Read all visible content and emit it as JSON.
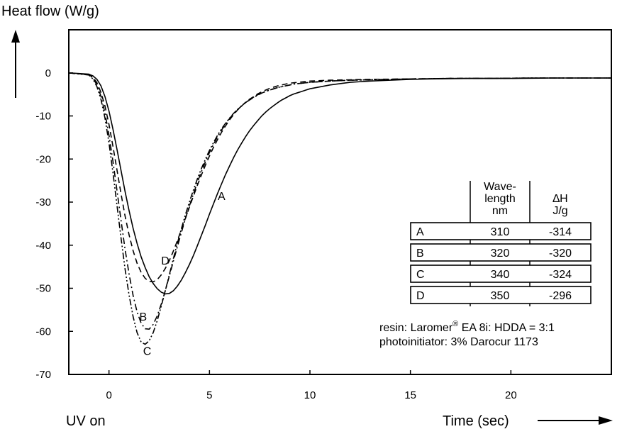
{
  "chart_data": {
    "type": "line",
    "ylabel": "Heat flow (W/g)",
    "xlabel": "Time (sec)",
    "x_annotation": "UV on",
    "xlim": [
      -2,
      25
    ],
    "ylim": [
      -70,
      10
    ],
    "xticks": [
      0,
      5,
      10,
      15,
      20
    ],
    "yticks": [
      0,
      -10,
      -20,
      -30,
      -40,
      -50,
      -60,
      -70
    ],
    "grid": false,
    "series": [
      {
        "name": "A",
        "style": "solid",
        "x": [
          -2,
          -1.0,
          -0.8,
          -0.6,
          -0.4,
          -0.2,
          0.0,
          0.2,
          0.4,
          0.6,
          0.8,
          1.0,
          1.2,
          1.4,
          1.6,
          1.8,
          2.0,
          2.2,
          2.4,
          2.6,
          2.8,
          3.0,
          3.2,
          3.4,
          3.6,
          3.8,
          4.0,
          4.2,
          4.4,
          4.6,
          4.8,
          5.0,
          5.2,
          5.4,
          5.6,
          5.8,
          6.0,
          6.2,
          6.4,
          6.6,
          6.8,
          7.0,
          7.2,
          7.4,
          7.6,
          7.8,
          8.0,
          8.2,
          8.4,
          8.6,
          8.8,
          9.0,
          9.2,
          9.4,
          9.6,
          9.8,
          10.0,
          11.0,
          12.0,
          13.0,
          14.0,
          15.0,
          16.0,
          17.0,
          18.0,
          19.0,
          20.0,
          21.0,
          22.0,
          23.0,
          24.0,
          25.0
        ],
        "y": [
          0,
          -0.3,
          -0.7,
          -1.5,
          -3.0,
          -5.5,
          -8.9,
          -13.1,
          -17.8,
          -22.7,
          -27.5,
          -32.0,
          -36.1,
          -39.6,
          -42.7,
          -45.2,
          -47.3,
          -48.9,
          -50.1,
          -50.9,
          -51.3,
          -51.2,
          -50.6,
          -49.5,
          -48.1,
          -46.4,
          -44.5,
          -42.4,
          -40.1,
          -37.7,
          -35.3,
          -32.8,
          -30.4,
          -28.0,
          -25.8,
          -23.6,
          -21.6,
          -19.7,
          -17.9,
          -16.3,
          -14.8,
          -13.4,
          -12.2,
          -11.1,
          -10.0,
          -9.1,
          -8.3,
          -7.6,
          -6.9,
          -6.3,
          -5.8,
          -5.3,
          -4.9,
          -4.6,
          -4.3,
          -4.0,
          -3.7,
          -2.8,
          -2.2,
          -1.9,
          -1.7,
          -1.5,
          -1.4,
          -1.35,
          -1.3,
          -1.3,
          -1.3,
          -1.25,
          -1.2,
          -1.2,
          -1.2,
          -1.2
        ]
      },
      {
        "name": "B",
        "style": "dash-dot",
        "x": [
          -2,
          -1.0,
          -0.8,
          -0.6,
          -0.4,
          -0.2,
          0.0,
          0.2,
          0.4,
          0.6,
          0.8,
          1.0,
          1.2,
          1.4,
          1.6,
          1.8,
          2.0,
          2.2,
          2.4,
          2.6,
          2.8,
          3.0,
          3.2,
          3.4,
          3.6,
          3.8,
          4.0,
          4.2,
          4.4,
          4.6,
          4.8,
          5.0,
          5.2,
          5.4,
          5.6,
          5.8,
          6.0,
          6.2,
          6.4,
          6.6,
          6.8,
          7.0,
          7.2,
          7.4,
          7.6,
          7.8,
          8.0,
          8.2,
          8.4,
          8.6,
          8.8,
          9.0,
          9.2,
          9.4,
          9.6,
          9.8,
          10.0,
          11.0,
          12.0,
          13.0,
          14.0,
          15.0,
          16.0,
          17.0,
          18.0,
          19.0,
          20.0,
          21.0,
          22.0,
          23.0,
          24.0,
          25.0
        ],
        "y": [
          0,
          -0.4,
          -1.2,
          -2.8,
          -5.4,
          -9.3,
          -14.5,
          -20.6,
          -27.4,
          -34.3,
          -40.9,
          -46.7,
          -51.7,
          -55.5,
          -58.1,
          -59.4,
          -59.5,
          -58.4,
          -56.4,
          -53.7,
          -50.6,
          -47.2,
          -43.8,
          -40.4,
          -37.1,
          -33.9,
          -30.9,
          -28.1,
          -25.4,
          -22.9,
          -20.6,
          -18.5,
          -16.6,
          -14.8,
          -13.3,
          -11.9,
          -10.6,
          -9.5,
          -8.5,
          -7.7,
          -6.9,
          -6.3,
          -5.7,
          -5.2,
          -4.7,
          -4.3,
          -4.0,
          -3.7,
          -3.4,
          -3.2,
          -3.0,
          -2.8,
          -2.6,
          -2.5,
          -2.4,
          -2.3,
          -2.2,
          -1.9,
          -1.7,
          -1.6,
          -1.5,
          -1.4,
          -1.35,
          -1.3,
          -1.3,
          -1.3,
          -1.25,
          -1.2,
          -1.2,
          -1.2,
          -1.2,
          -1.2
        ]
      },
      {
        "name": "C",
        "style": "dash-dot-dot",
        "x": [
          -2,
          -1.0,
          -0.8,
          -0.6,
          -0.4,
          -0.2,
          0.0,
          0.2,
          0.4,
          0.6,
          0.8,
          1.0,
          1.2,
          1.4,
          1.6,
          1.8,
          2.0,
          2.2,
          2.4,
          2.6,
          2.8,
          3.0,
          3.2,
          3.4,
          3.6,
          3.8,
          4.0,
          4.2,
          4.4,
          4.6,
          4.8,
          5.0,
          5.2,
          5.4,
          5.6,
          5.8,
          6.0,
          6.2,
          6.4,
          6.6,
          6.8,
          7.0,
          7.2,
          7.4,
          7.6,
          7.8,
          8.0,
          8.2,
          8.4,
          8.6,
          8.8,
          9.0,
          9.2,
          9.4,
          9.6,
          9.8,
          10.0,
          11.0,
          12.0,
          13.0,
          14.0,
          15.0,
          16.0,
          17.0,
          18.0,
          19.0,
          20.0,
          21.0,
          22.0,
          23.0,
          24.0,
          25.0
        ],
        "y": [
          0,
          -0.5,
          -1.4,
          -3.2,
          -6.1,
          -10.5,
          -16.3,
          -23.2,
          -30.8,
          -38.4,
          -45.5,
          -51.6,
          -56.6,
          -60.3,
          -62.5,
          -63.0,
          -62.2,
          -60.3,
          -57.5,
          -54.2,
          -50.6,
          -46.9,
          -43.2,
          -39.6,
          -36.2,
          -33.0,
          -30.0,
          -27.2,
          -24.6,
          -22.2,
          -20.0,
          -18.0,
          -16.2,
          -14.5,
          -13.0,
          -11.7,
          -10.5,
          -9.4,
          -8.5,
          -7.6,
          -6.9,
          -6.2,
          -5.6,
          -5.1,
          -4.7,
          -4.3,
          -4.0,
          -3.7,
          -3.4,
          -3.2,
          -3.0,
          -2.8,
          -2.6,
          -2.5,
          -2.4,
          -2.3,
          -2.2,
          -1.9,
          -1.7,
          -1.6,
          -1.5,
          -1.4,
          -1.35,
          -1.3,
          -1.3,
          -1.3,
          -1.25,
          -1.2,
          -1.2,
          -1.2,
          -1.2,
          -1.2
        ]
      },
      {
        "name": "D",
        "style": "dashed",
        "x": [
          -2,
          -1.0,
          -0.8,
          -0.6,
          -0.4,
          -0.2,
          0.0,
          0.2,
          0.4,
          0.6,
          0.8,
          1.0,
          1.2,
          1.4,
          1.6,
          1.8,
          2.0,
          2.2,
          2.4,
          2.6,
          2.8,
          3.0,
          3.2,
          3.4,
          3.6,
          3.8,
          4.0,
          4.2,
          4.4,
          4.6,
          4.8,
          5.0,
          5.2,
          5.4,
          5.6,
          5.8,
          6.0,
          6.2,
          6.4,
          6.6,
          6.8,
          7.0,
          7.2,
          7.4,
          7.6,
          7.8,
          8.0,
          8.2,
          8.4,
          8.6,
          8.8,
          9.0,
          9.2,
          9.4,
          9.6,
          9.8,
          10.0,
          11.0,
          12.0,
          13.0,
          14.0,
          15.0,
          16.0,
          17.0,
          18.0,
          19.0,
          20.0,
          21.0,
          22.0,
          23.0,
          24.0,
          25.0
        ],
        "y": [
          0,
          -0.4,
          -1.0,
          -2.3,
          -4.5,
          -7.7,
          -12.0,
          -17.1,
          -22.6,
          -28.1,
          -33.2,
          -37.6,
          -41.3,
          -44.2,
          -46.3,
          -47.7,
          -48.4,
          -48.5,
          -48.0,
          -46.9,
          -45.4,
          -43.6,
          -41.4,
          -39.0,
          -36.4,
          -33.8,
          -31.2,
          -28.6,
          -26.1,
          -23.7,
          -21.4,
          -19.3,
          -17.3,
          -15.5,
          -13.8,
          -12.3,
          -10.9,
          -9.7,
          -8.6,
          -7.7,
          -6.8,
          -6.1,
          -5.5,
          -4.9,
          -4.4,
          -4.0,
          -3.6,
          -3.3,
          -3.0,
          -2.8,
          -2.6,
          -2.4,
          -2.3,
          -2.2,
          -2.1,
          -2.0,
          -1.9,
          -1.7,
          -1.6,
          -1.5,
          -1.45,
          -1.4,
          -1.35,
          -1.3,
          -1.3,
          -1.3,
          -1.25,
          -1.2,
          -1.2,
          -1.2,
          -1.2,
          -1.2
        ]
      }
    ],
    "annotations": [
      {
        "text": "A",
        "x": 5.6,
        "y": -29.5
      },
      {
        "text": "B",
        "x": 1.7,
        "y": -57.5
      },
      {
        "text": "C",
        "x": 1.9,
        "y": -65.5
      },
      {
        "text": "D",
        "x": 2.8,
        "y": -44.5
      }
    ],
    "table": {
      "headers": {
        "wavelength": [
          "Wave-",
          "length",
          "nm"
        ],
        "enthalpy": [
          "∆H",
          "J/g"
        ]
      },
      "rows": [
        {
          "label": "A",
          "wavelength": "310",
          "enthalpy": "-314"
        },
        {
          "label": "B",
          "wavelength": "320",
          "enthalpy": "-320"
        },
        {
          "label": "C",
          "wavelength": "340",
          "enthalpy": "-324"
        },
        {
          "label": "D",
          "wavelength": "350",
          "enthalpy": "-296"
        }
      ]
    },
    "notes": {
      "resin_prefix": "resin: Laromer",
      "resin_mark": "®",
      "resin_suffix": " EA 8i: HDDA = 3:1",
      "photoinitiator": "photoinitiator: 3% Darocur 1173"
    }
  }
}
